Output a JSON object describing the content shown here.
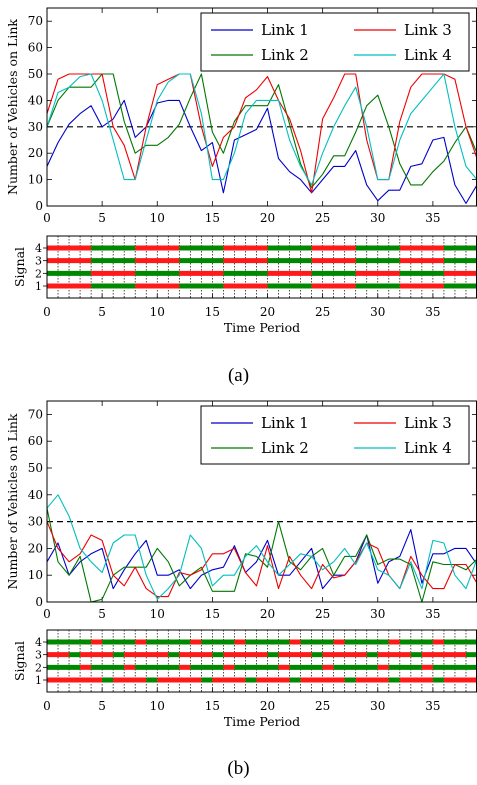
{
  "captions": {
    "a": "(a)",
    "b": "(b)"
  },
  "chart_data": [
    {
      "type": "line",
      "panel": "a",
      "ylabel": "Number of Vehicles on Link",
      "xlabel": "",
      "xlim": [
        0,
        39
      ],
      "ylim": [
        0,
        75
      ],
      "xticks": [
        0,
        5,
        10,
        15,
        20,
        25,
        30,
        35
      ],
      "yticks": [
        0,
        10,
        20,
        30,
        40,
        50,
        60,
        70
      ],
      "threshold": 30,
      "legend_position": "top-right",
      "colors": {
        "Link 1": "#0000cc",
        "Link 2": "#007700",
        "Link 3": "#ee0000",
        "Link 4": "#00bfbf",
        "threshold": "#000000"
      },
      "x": [
        0,
        1,
        2,
        3,
        4,
        5,
        6,
        7,
        8,
        9,
        10,
        11,
        12,
        13,
        14,
        15,
        16,
        17,
        18,
        19,
        20,
        21,
        22,
        23,
        24,
        25,
        26,
        27,
        28,
        29,
        30,
        31,
        32,
        33,
        34,
        35,
        36,
        37,
        38,
        39
      ],
      "series": [
        {
          "name": "Link 1",
          "values": [
            15,
            24,
            31,
            35,
            38,
            30,
            33,
            40,
            26,
            30,
            39,
            40,
            40,
            30,
            21,
            24,
            5,
            25,
            27,
            29,
            37,
            18,
            13,
            10,
            5,
            10,
            15,
            15,
            21,
            8,
            2,
            6,
            6,
            15,
            16,
            25,
            26,
            8,
            1,
            8
          ]
        },
        {
          "name": "Link 2",
          "values": [
            30,
            40,
            45,
            45,
            45,
            50,
            50,
            32,
            20,
            23,
            23,
            26,
            31,
            41,
            50,
            28,
            20,
            32,
            38,
            38,
            38,
            46,
            31,
            16,
            7,
            12,
            19,
            19,
            28,
            38,
            42,
            30,
            16,
            8,
            8,
            13,
            17,
            24,
            30,
            20
          ]
        },
        {
          "name": "Link 3",
          "values": [
            35,
            48,
            50,
            50,
            50,
            50,
            30,
            23,
            10,
            30,
            46,
            48,
            50,
            50,
            30,
            15,
            26,
            30,
            41,
            44,
            49,
            40,
            33,
            21,
            5,
            33,
            41,
            50,
            50,
            25,
            10,
            10,
            32,
            45,
            50,
            50,
            50,
            48,
            30,
            18
          ]
        },
        {
          "name": "Link 4",
          "values": [
            30,
            43,
            45,
            49,
            50,
            40,
            25,
            10,
            10,
            25,
            40,
            47,
            50,
            50,
            35,
            10,
            10,
            20,
            35,
            40,
            40,
            40,
            25,
            15,
            8,
            20,
            30,
            38,
            45,
            30,
            10,
            10,
            25,
            35,
            40,
            45,
            50,
            30,
            15,
            10
          ]
        }
      ]
    },
    {
      "type": "heatmap",
      "panel": "a",
      "ylabel": "Signal",
      "xlabel": "Time Period",
      "xlim": [
        0,
        39
      ],
      "xticks": [
        0,
        5,
        10,
        15,
        20,
        25,
        30,
        35
      ],
      "rows": [
        1,
        2,
        3,
        4
      ],
      "colors": {
        "red": "#ff1a1a",
        "green": "#008800"
      },
      "segments_desc": "each row alternates color blocks; boundaries in time periods",
      "rows_pattern": {
        "1": [
          "red",
          0,
          4,
          "green",
          4,
          8,
          "red",
          8,
          12,
          "green",
          12,
          16,
          "red",
          16,
          20,
          "green",
          20,
          24,
          "red",
          24,
          28,
          "green",
          28,
          32,
          "red",
          32,
          36,
          "green",
          36,
          39
        ],
        "2": [
          "green",
          0,
          4,
          "red",
          4,
          8,
          "green",
          8,
          12,
          "red",
          12,
          16,
          "green",
          16,
          20,
          "red",
          20,
          24,
          "green",
          24,
          28,
          "red",
          28,
          32,
          "green",
          32,
          36,
          "red",
          36,
          39
        ],
        "3": [
          "red",
          0,
          4,
          "green",
          4,
          8,
          "red",
          8,
          12,
          "green",
          12,
          16,
          "red",
          16,
          20,
          "green",
          20,
          24,
          "red",
          24,
          28,
          "green",
          28,
          32,
          "red",
          32,
          36,
          "green",
          36,
          39
        ],
        "4": [
          "red",
          0,
          4,
          "green",
          4,
          8,
          "red",
          8,
          12,
          "green",
          12,
          16,
          "red",
          16,
          20,
          "green",
          20,
          24,
          "red",
          24,
          28,
          "green",
          28,
          32,
          "red",
          32,
          36,
          "green",
          36,
          39
        ]
      }
    },
    {
      "type": "line",
      "panel": "b",
      "ylabel": "Number of Vehicles on Link",
      "xlabel": "",
      "xlim": [
        0,
        39
      ],
      "ylim": [
        0,
        75
      ],
      "xticks": [
        0,
        5,
        10,
        15,
        20,
        25,
        30,
        35
      ],
      "yticks": [
        0,
        10,
        20,
        30,
        40,
        50,
        60,
        70
      ],
      "threshold": 30,
      "legend_position": "top-right",
      "colors": {
        "Link 1": "#0000cc",
        "Link 2": "#007700",
        "Link 3": "#ee0000",
        "Link 4": "#00bfbf",
        "threshold": "#000000"
      },
      "x": [
        0,
        1,
        2,
        3,
        4,
        5,
        6,
        7,
        8,
        9,
        10,
        11,
        12,
        13,
        14,
        15,
        16,
        17,
        18,
        19,
        20,
        21,
        22,
        23,
        24,
        25,
        26,
        27,
        28,
        29,
        30,
        31,
        32,
        33,
        34,
        35,
        36,
        37,
        38,
        39
      ],
      "series": [
        {
          "name": "Link 1",
          "values": [
            15,
            22,
            10,
            15,
            18,
            20,
            5,
            12,
            18,
            23,
            10,
            10,
            12,
            5,
            10,
            12,
            13,
            21,
            11,
            15,
            23,
            10,
            10,
            15,
            20,
            5,
            10,
            10,
            15,
            25,
            7,
            15,
            17,
            27,
            7,
            18,
            18,
            20,
            20,
            14
          ]
        },
        {
          "name": "Link 2",
          "values": [
            35,
            15,
            10,
            17,
            0,
            1,
            10,
            13,
            13,
            13,
            20,
            15,
            6,
            10,
            13,
            4,
            4,
            4,
            18,
            17,
            13,
            30,
            15,
            12,
            17,
            20,
            10,
            17,
            17,
            25,
            14,
            16,
            16,
            14,
            0,
            15,
            14,
            14,
            12,
            16
          ]
        },
        {
          "name": "Link 3",
          "values": [
            30,
            20,
            15,
            18,
            25,
            23,
            10,
            6,
            13,
            5,
            2,
            2,
            11,
            10,
            12,
            18,
            18,
            20,
            11,
            6,
            21,
            5,
            17,
            10,
            5,
            14,
            9,
            10,
            15,
            22,
            20,
            10,
            5,
            17,
            10,
            5,
            5,
            14,
            14,
            7
          ]
        },
        {
          "name": "Link 4",
          "values": [
            35,
            40,
            32,
            20,
            15,
            11,
            22,
            25,
            25,
            10,
            1,
            5,
            10,
            25,
            20,
            6,
            10,
            10,
            17,
            21,
            15,
            10,
            14,
            18,
            17,
            12,
            15,
            20,
            14,
            22,
            12,
            10,
            5,
            15,
            5,
            23,
            22,
            10,
            5,
            16
          ]
        }
      ]
    },
    {
      "type": "heatmap",
      "panel": "b",
      "ylabel": "Signal",
      "xlabel": "Time Period",
      "xlim": [
        0,
        39
      ],
      "xticks": [
        0,
        5,
        10,
        15,
        20,
        25,
        30,
        35
      ],
      "rows": [
        1,
        2,
        3,
        4
      ],
      "colors": {
        "red": "#ff1a1a",
        "green": "#008800"
      },
      "rows_pattern": {
        "1": [
          "red",
          0,
          5,
          "green",
          5,
          6,
          "red",
          6,
          9,
          "green",
          9,
          10,
          "red",
          10,
          14,
          "green",
          14,
          15,
          "red",
          15,
          18,
          "green",
          18,
          19,
          "red",
          19,
          22,
          "green",
          22,
          23,
          "red",
          23,
          27,
          "green",
          27,
          28,
          "red",
          28,
          31,
          "green",
          31,
          32,
          "red",
          32,
          35,
          "green",
          35,
          36,
          "red",
          36,
          39
        ],
        "2": [
          "green",
          0,
          3,
          "red",
          3,
          4,
          "green",
          4,
          7,
          "red",
          7,
          8,
          "green",
          8,
          12,
          "red",
          12,
          13,
          "green",
          13,
          16,
          "red",
          16,
          17,
          "green",
          17,
          21,
          "red",
          21,
          22,
          "green",
          22,
          25,
          "red",
          25,
          26,
          "green",
          26,
          30,
          "red",
          30,
          31,
          "green",
          31,
          34,
          "red",
          34,
          35,
          "green",
          35,
          39
        ],
        "3": [
          "red",
          0,
          2,
          "green",
          2,
          3,
          "red",
          3,
          6,
          "green",
          6,
          7,
          "red",
          7,
          11,
          "green",
          11,
          12,
          "red",
          12,
          15,
          "green",
          15,
          16,
          "red",
          16,
          20,
          "green",
          20,
          21,
          "red",
          21,
          24,
          "green",
          24,
          25,
          "red",
          25,
          29,
          "green",
          29,
          30,
          "red",
          30,
          33,
          "green",
          33,
          34,
          "red",
          34,
          38,
          "green",
          38,
          39
        ],
        "4": [
          "green",
          0,
          4,
          "red",
          4,
          5,
          "green",
          5,
          8,
          "red",
          8,
          9,
          "green",
          9,
          13,
          "red",
          13,
          14,
          "green",
          14,
          17,
          "red",
          17,
          18,
          "green",
          18,
          22,
          "red",
          22,
          23,
          "green",
          23,
          26,
          "red",
          26,
          27,
          "green",
          27,
          31,
          "red",
          31,
          32,
          "green",
          32,
          35,
          "red",
          35,
          36,
          "green",
          36,
          39
        ]
      }
    }
  ]
}
